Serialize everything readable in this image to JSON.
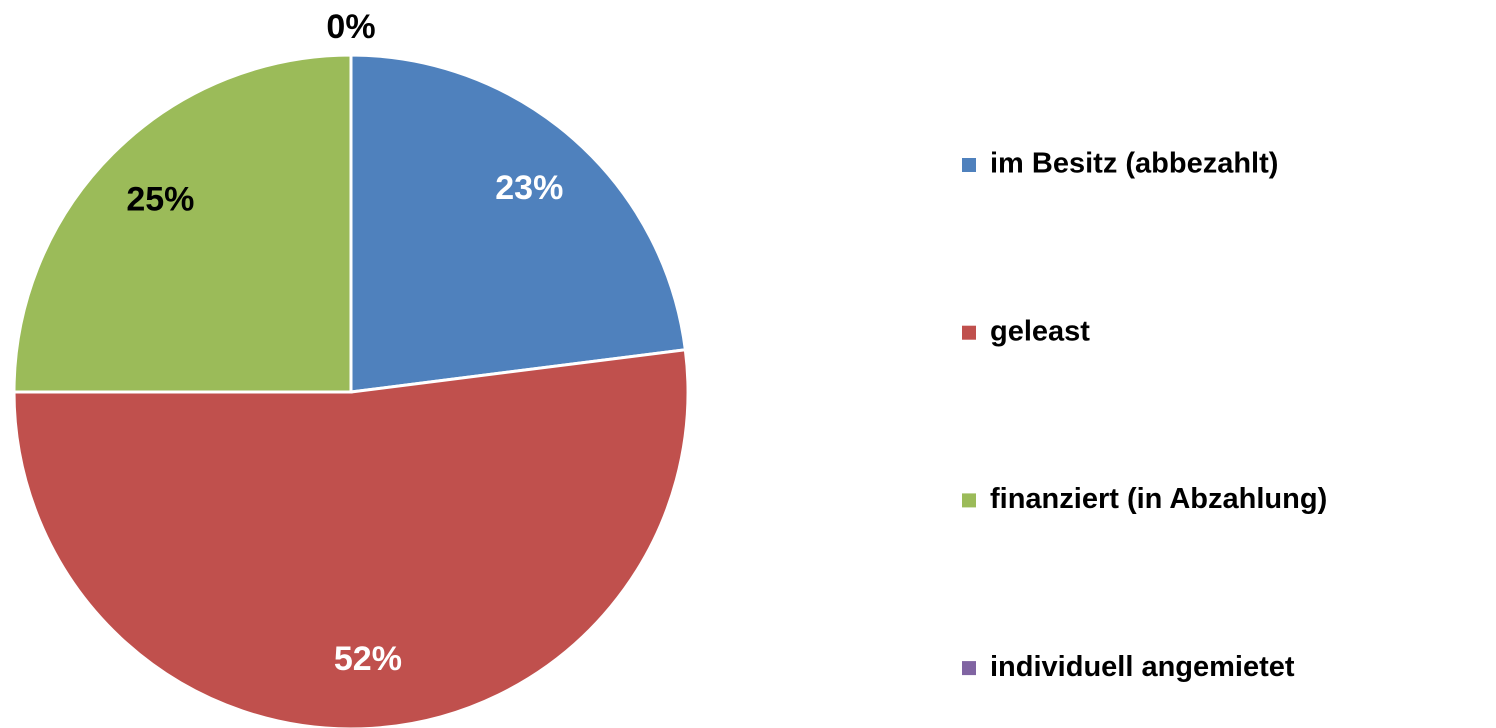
{
  "chart_data": {
    "type": "pie",
    "categories": [
      "im Besitz (abbezahlt)",
      "geleast",
      "finanziert (in Abzahlung)",
      "individuell angemietet"
    ],
    "values": [
      23,
      52,
      25,
      0
    ],
    "value_labels": [
      "23%",
      "52%",
      "25%",
      "0%"
    ],
    "colors": [
      "#4f81bd",
      "#c0504d",
      "#9bbb59",
      "#8064a2"
    ],
    "label_colors": [
      "#ffffff",
      "#ffffff",
      "#000000",
      "#000000"
    ],
    "legend": "right"
  }
}
